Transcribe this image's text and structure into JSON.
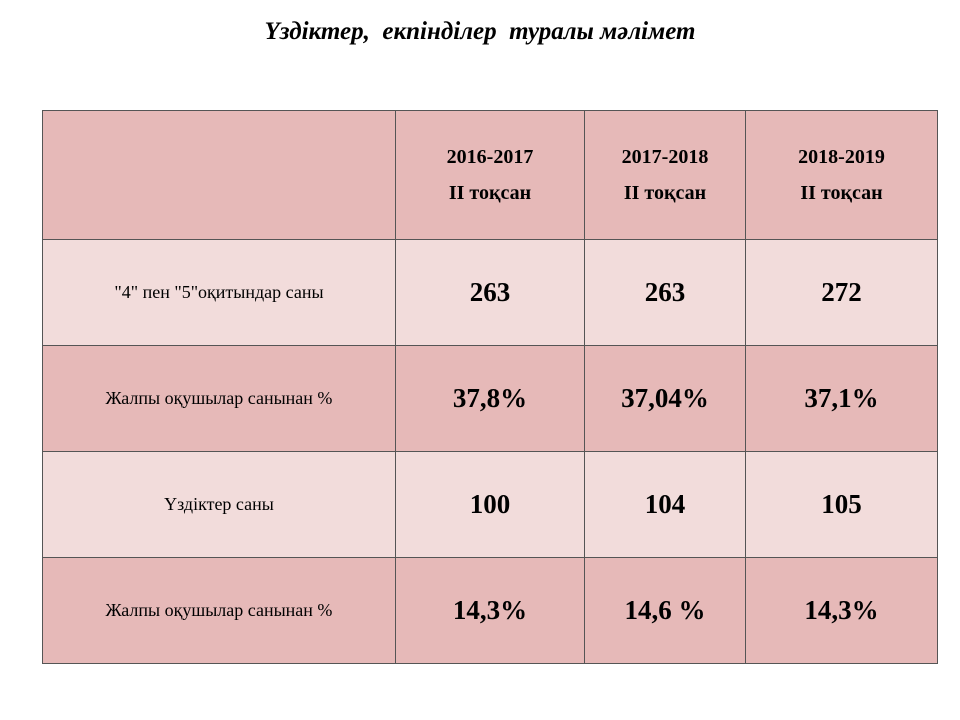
{
  "title": "Үздіктер,  екпінділер  туралы мәлімет",
  "table": {
    "columns": [
      {
        "period": "2016-2017",
        "term": "II тоқсан"
      },
      {
        "period": "2017-2018",
        "term": "II тоқсан"
      },
      {
        "period": "2018-2019",
        "term": "II тоқсан"
      }
    ],
    "rows": [
      {
        "label": "\"4\" пен \"5\"оқитындар саны",
        "values": [
          "263",
          "263",
          "272"
        ]
      },
      {
        "label": "Жалпы оқушылар санынан %",
        "values": [
          "37,8%",
          "37,04%",
          "37,1%"
        ]
      },
      {
        "label": "Үздіктер саны",
        "values": [
          "100",
          "104",
          "105"
        ]
      },
      {
        "label": "Жалпы оқушылар санынан %",
        "values": [
          "14,3%",
          "14,6 %",
          "14,3%"
        ]
      }
    ]
  }
}
